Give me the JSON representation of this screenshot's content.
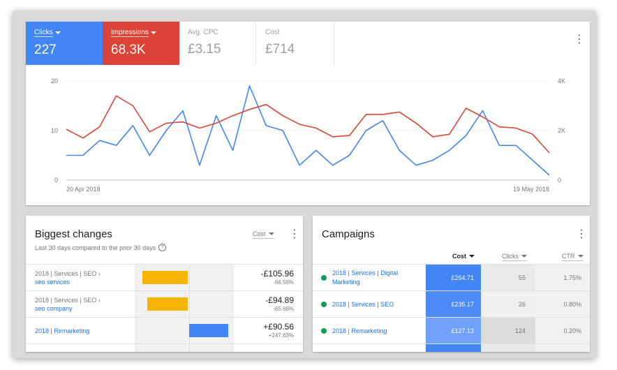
{
  "metrics": {
    "clicks": {
      "label": "Clicks",
      "value": "227"
    },
    "impressions": {
      "label": "Impressions",
      "value": "68.3K"
    },
    "avg_cpc": {
      "label": "Avg. CPC",
      "value": "£3.15"
    },
    "cost": {
      "label": "Cost",
      "value": "£714"
    }
  },
  "colors": {
    "clicks": "#4285f4",
    "impressions": "#db4437",
    "positive": "#4285f4",
    "negative": "#f4b400",
    "enabled": "#0f9d58"
  },
  "chart_data": {
    "type": "line",
    "x_start_label": "20 Apr 2018",
    "x_end_label": "19 May 2018",
    "left_axis": {
      "ticks": [
        "0",
        "10",
        "20"
      ],
      "ylim": [
        0,
        20
      ]
    },
    "right_axis": {
      "ticks": [
        "0",
        "2K",
        "4K"
      ],
      "ylim": [
        0,
        4000
      ]
    },
    "grid": true,
    "series": [
      {
        "name": "Clicks",
        "axis": "left",
        "color": "#4285f4",
        "values": [
          5,
          5,
          8,
          7,
          11,
          5,
          10,
          14,
          3,
          13,
          6,
          19,
          11,
          10,
          3,
          6,
          3,
          5,
          10,
          12,
          6,
          3,
          4,
          6,
          9,
          14,
          7,
          7,
          4,
          1
        ]
      },
      {
        "name": "Impressions",
        "axis": "right",
        "color": "#db4437",
        "values": [
          2050,
          1700,
          2150,
          3400,
          3000,
          1950,
          2300,
          2350,
          2100,
          2300,
          2600,
          2850,
          3050,
          2600,
          2250,
          2100,
          1750,
          1800,
          2650,
          2650,
          2750,
          2300,
          1750,
          1850,
          2900,
          2550,
          2150,
          2100,
          1850,
          1100
        ]
      }
    ]
  },
  "biggest_changes": {
    "title": "Biggest changes",
    "subtitle": "Last 30 days compared to the prior 30 days",
    "help_icon": "?",
    "metric_label": "Cost",
    "rows": [
      {
        "path": "2018 | Services | SEO ›",
        "name": "seo services",
        "amount": "-£105.96",
        "pct": "-66.56%",
        "change": -105.96
      },
      {
        "path": "2018 | Services | SEO ›",
        "name": "seo company",
        "amount": "-£94.89",
        "pct": "-65.66%",
        "change": -94.89
      },
      {
        "path": "",
        "name": "2018 | Remarketing",
        "amount": "+£90.56",
        "pct": "+247.63%",
        "change": 90.56
      }
    ]
  },
  "campaigns": {
    "title": "Campaigns",
    "columns": {
      "cost": "Cost",
      "clicks": "Clicks",
      "ctr": "CTR"
    },
    "rows": [
      {
        "name": "2018 | Services | Digital Marketing",
        "cost": "£264.71",
        "clicks": "55",
        "ctr": "1.75%",
        "cost_value": 264.71
      },
      {
        "name": "2018 | Services | SEO",
        "cost": "£235.17",
        "clicks": "26",
        "ctr": "0.80%",
        "cost_value": 235.17
      },
      {
        "name": "2018 | Remarketing",
        "cost": "£127.13",
        "clicks": "124",
        "ctr": "0.20%",
        "cost_value": 127.13
      }
    ]
  },
  "icons": {
    "more": "more-vert-icon",
    "sort": "caret-down-icon",
    "status": "enabled-dot-icon"
  }
}
